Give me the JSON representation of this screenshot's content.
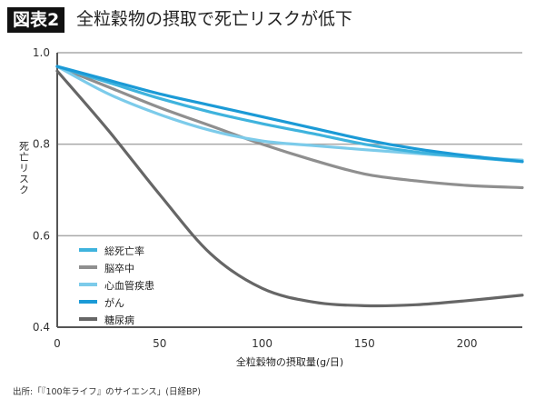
{
  "header": {
    "badge": "図表2",
    "title": "全粒穀物の摂取で死亡リスクが低下"
  },
  "source": "出所:「『100年ライフ』のサイエンス」(日経BP)",
  "chart_data": {
    "type": "line",
    "xlabel": "全粒穀物の摂取量(g/日)",
    "ylabel": "死亡リスク",
    "xlim": [
      0,
      227
    ],
    "ylim": [
      0.4,
      1.0
    ],
    "xticks": [
      0,
      50,
      100,
      150,
      200
    ],
    "yticks": [
      0.4,
      0.6,
      0.8,
      1.0
    ],
    "grid": "horizontal",
    "legend": "bottom-left",
    "x": [
      0,
      25,
      50,
      75,
      100,
      125,
      150,
      175,
      200,
      227
    ],
    "series": [
      {
        "name": "総死亡率",
        "color": "#3fb3dd",
        "values": [
          0.97,
          0.935,
          0.9,
          0.87,
          0.845,
          0.823,
          0.8,
          0.783,
          0.772,
          0.762
        ]
      },
      {
        "name": "脳卒中",
        "color": "#8f8f8f",
        "values": [
          0.97,
          0.925,
          0.88,
          0.84,
          0.8,
          0.765,
          0.735,
          0.72,
          0.71,
          0.705
        ]
      },
      {
        "name": "心血管疾患",
        "color": "#7ccbea",
        "values": [
          0.97,
          0.91,
          0.865,
          0.83,
          0.807,
          0.797,
          0.788,
          0.78,
          0.772,
          0.765
        ]
      },
      {
        "name": "がん",
        "color": "#1b9ad6",
        "values": [
          0.97,
          0.94,
          0.91,
          0.885,
          0.86,
          0.835,
          0.81,
          0.79,
          0.775,
          0.762
        ]
      },
      {
        "name": "糖尿病",
        "color": "#666666",
        "values": [
          0.96,
          0.83,
          0.69,
          0.56,
          0.485,
          0.455,
          0.447,
          0.449,
          0.458,
          0.47
        ]
      }
    ]
  }
}
